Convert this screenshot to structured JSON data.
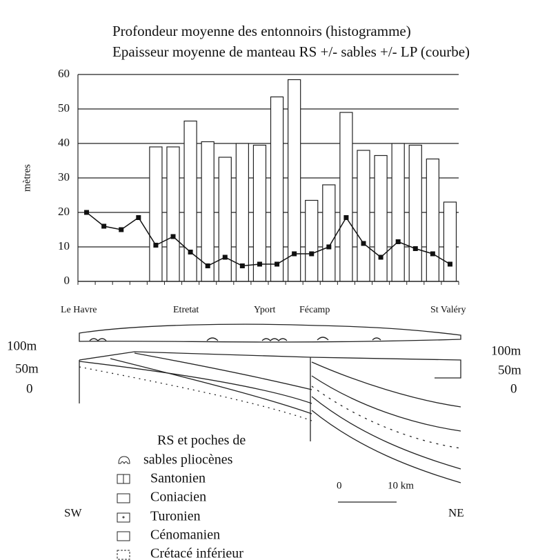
{
  "chart_data": {
    "type": "bar-line",
    "title": "Profondeur moyenne des entonnoirs (histogramme)",
    "subtitle": "Epaisseur moyenne de manteau RS +/- sables +/- LP (courbe)",
    "y_label": "mètres",
    "categories": [
      null,
      null,
      null,
      null,
      null,
      null,
      null,
      null,
      null,
      null,
      null,
      null,
      null,
      null,
      null,
      null,
      null,
      null,
      null,
      null,
      null,
      null
    ],
    "series": [
      {
        "type": "bar",
        "color": "#ffffff",
        "values": [
          null,
          null,
          null,
          null,
          39,
          39,
          46.5,
          40.5,
          36,
          40,
          39.5,
          53.5,
          58.5,
          23.5,
          28,
          49,
          38,
          36.5,
          40,
          39.5,
          35.5,
          23
        ]
      },
      {
        "type": "line",
        "color": "#111111",
        "values": [
          20,
          16,
          15,
          18.5,
          10.5,
          13,
          8.5,
          4.5,
          7,
          4.5,
          5,
          5,
          8,
          8,
          10,
          18.5,
          11,
          7,
          11.5,
          9.5,
          8,
          5
        ]
      }
    ],
    "ylim": [
      0,
      60
    ],
    "yticks": [
      0,
      10,
      20,
      30,
      40,
      50,
      60
    ],
    "grid": true
  },
  "section": {
    "places": [
      "Le Havre",
      "Etretat",
      "Yport",
      "Fécamp",
      "St Valéry"
    ],
    "left_scale": [
      "100m",
      "50m",
      "0"
    ],
    "right_scale": [
      "100m",
      "50m",
      "0"
    ],
    "sw": "SW",
    "ne": "NE",
    "legend": [
      "RS et poches de",
      "sables pliocènes",
      "Santonien",
      "Coniacien",
      "Turonien",
      "Cénomanien",
      "Crétacé inférieur"
    ],
    "scale_bar": [
      "0",
      "10 km"
    ]
  }
}
